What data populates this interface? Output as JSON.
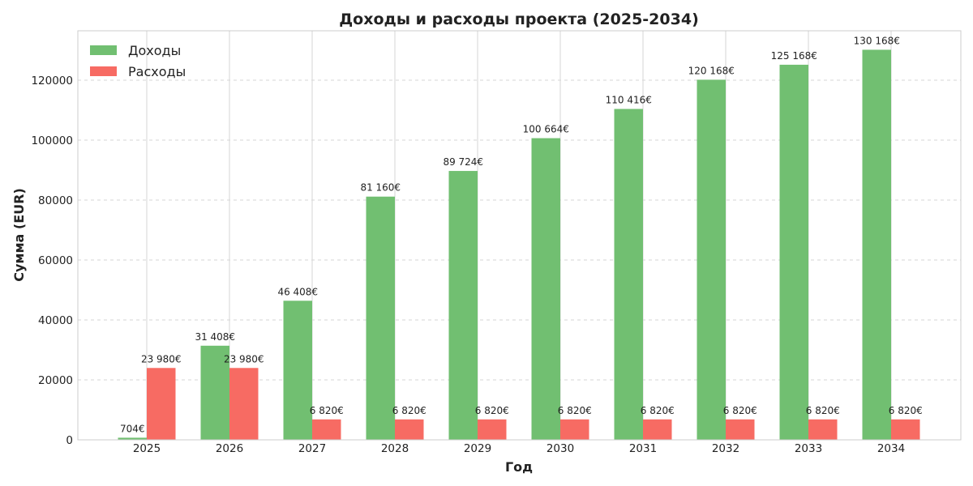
{
  "chart_data": {
    "type": "bar",
    "title": "Доходы и расходы проекта (2025-2034)",
    "xlabel": "Год",
    "ylabel": "Сумма (EUR)",
    "categories": [
      "2025",
      "2026",
      "2027",
      "2028",
      "2029",
      "2030",
      "2031",
      "2032",
      "2033",
      "2034"
    ],
    "ylim": [
      0,
      136500
    ],
    "yticks": [
      0,
      20000,
      40000,
      60000,
      80000,
      100000,
      120000
    ],
    "ytick_labels": [
      "0",
      "20000",
      "40000",
      "60000",
      "80000",
      "100000",
      "120000"
    ],
    "grid": true,
    "legend_position": "top-left",
    "series": [
      {
        "name": "Доходы",
        "color": "#71bf71",
        "values": [
          704,
          31408,
          46408,
          81160,
          89724,
          100664,
          110416,
          120168,
          125168,
          130168
        ],
        "labels": [
          "704€",
          "31 408€",
          "46 408€",
          "81 160€",
          "89 724€",
          "100 664€",
          "110 416€",
          "120 168€",
          "125 168€",
          "130 168€"
        ]
      },
      {
        "name": "Расходы",
        "color": "#f76b63",
        "values": [
          23980,
          23980,
          6820,
          6820,
          6820,
          6820,
          6820,
          6820,
          6820,
          6820
        ],
        "labels": [
          "23 980€",
          "23 980€",
          "6 820€",
          "6 820€",
          "6 820€",
          "6 820€",
          "6 820€",
          "6 820€",
          "6 820€",
          "6 820€"
        ]
      }
    ]
  }
}
